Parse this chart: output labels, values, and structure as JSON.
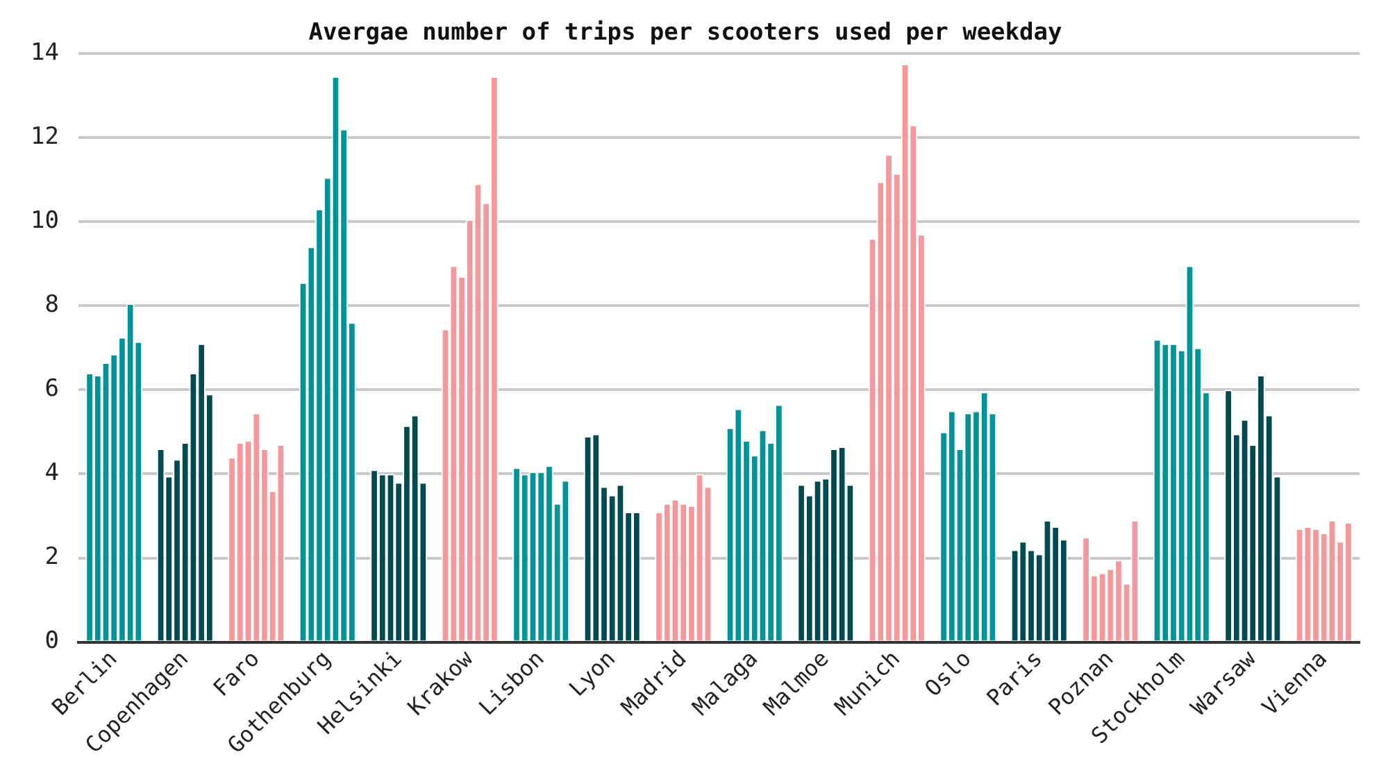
{
  "chart_data": {
    "type": "bar",
    "title": "Avergae number of trips per scooters used per weekday",
    "categories": [
      "Berlin",
      "Copenhagen",
      "Faro",
      "Gothenburg",
      "Helsinki",
      "Krakow",
      "Lisbon",
      "Lyon",
      "Madrid",
      "Malaga",
      "Malmoe",
      "Munich",
      "Oslo",
      "Paris",
      "Poznan",
      "Stockholm",
      "Warsaw",
      "Vienna"
    ],
    "ylim": [
      0,
      14
    ],
    "yticks": [
      0,
      2,
      4,
      6,
      8,
      10,
      12,
      14
    ],
    "grid": "y",
    "legend": false,
    "series": [
      {
        "colors": [
          "#00939a",
          "#004a52",
          "#f4989c",
          "#00939a",
          "#004a52",
          "#f4989c",
          "#00939a",
          "#004a52",
          "#f4989c",
          "#00939a",
          "#004a52",
          "#f4989c",
          "#00939a",
          "#004a52",
          "#f4989c",
          "#00939a",
          "#004a52",
          "#f4989c"
        ],
        "values": [
          6.4,
          4.6,
          4.4,
          8.55,
          4.1,
          7.45,
          4.15,
          4.9,
          3.1,
          5.1,
          3.75,
          9.6,
          5.0,
          2.2,
          2.5,
          7.2,
          6.0,
          2.7
        ]
      },
      {
        "colors": [
          "#00939a",
          "#004a52",
          "#f4989c",
          "#00939a",
          "#004a52",
          "#f4989c",
          "#00939a",
          "#004a52",
          "#f4989c",
          "#00939a",
          "#004a52",
          "#f4989c",
          "#00939a",
          "#004a52",
          "#f4989c",
          "#00939a",
          "#004a52",
          "#f4989c"
        ],
        "values": [
          6.35,
          3.95,
          4.75,
          9.4,
          4.0,
          8.95,
          4.0,
          4.95,
          3.3,
          5.55,
          3.5,
          10.95,
          5.5,
          2.4,
          1.6,
          7.1,
          4.95,
          2.75
        ]
      },
      {
        "colors": [
          "#00939a",
          "#004a52",
          "#f4989c",
          "#00939a",
          "#004a52",
          "#f4989c",
          "#00939a",
          "#004a52",
          "#f4989c",
          "#00939a",
          "#004a52",
          "#f4989c",
          "#00939a",
          "#004a52",
          "#f4989c",
          "#00939a",
          "#004a52",
          "#f4989c"
        ],
        "values": [
          6.65,
          4.35,
          4.8,
          10.3,
          4.0,
          8.7,
          4.05,
          3.7,
          3.4,
          4.8,
          3.85,
          11.6,
          4.6,
          2.2,
          1.65,
          7.1,
          5.3,
          2.7
        ]
      },
      {
        "colors": [
          "#00939a",
          "#004a52",
          "#f4989c",
          "#00939a",
          "#004a52",
          "#f4989c",
          "#00939a",
          "#004a52",
          "#f4989c",
          "#00939a",
          "#004a52",
          "#f4989c",
          "#00939a",
          "#004a52",
          "#f4989c",
          "#00939a",
          "#004a52",
          "#f4989c"
        ],
        "values": [
          6.85,
          4.75,
          5.45,
          11.05,
          3.8,
          10.05,
          4.05,
          3.5,
          3.3,
          4.45,
          3.9,
          11.15,
          5.45,
          2.1,
          1.75,
          6.95,
          4.7,
          2.6
        ]
      },
      {
        "colors": [
          "#00939a",
          "#004a52",
          "#f4989c",
          "#00939a",
          "#004a52",
          "#f4989c",
          "#00939a",
          "#004a52",
          "#f4989c",
          "#00939a",
          "#004a52",
          "#f4989c",
          "#00939a",
          "#004a52",
          "#f4989c",
          "#00939a",
          "#004a52",
          "#f4989c"
        ],
        "values": [
          7.25,
          6.4,
          4.6,
          13.45,
          5.15,
          10.9,
          4.2,
          3.75,
          3.25,
          5.05,
          4.6,
          13.75,
          5.5,
          2.9,
          1.95,
          8.95,
          6.35,
          2.9
        ]
      },
      {
        "colors": [
          "#00939a",
          "#004a52",
          "#f4989c",
          "#00939a",
          "#004a52",
          "#f4989c",
          "#00939a",
          "#004a52",
          "#f4989c",
          "#00939a",
          "#004a52",
          "#f4989c",
          "#00939a",
          "#004a52",
          "#f4989c",
          "#00939a",
          "#004a52",
          "#f4989c"
        ],
        "values": [
          8.05,
          7.1,
          3.6,
          12.2,
          5.4,
          10.45,
          3.3,
          3.1,
          4.0,
          4.75,
          4.65,
          12.3,
          5.95,
          2.75,
          1.4,
          7.0,
          5.4,
          2.4
        ]
      },
      {
        "colors": [
          "#00939a",
          "#004a52",
          "#f4989c",
          "#00939a",
          "#004a52",
          "#f4989c",
          "#00939a",
          "#004a52",
          "#f4989c",
          "#00939a",
          "#004a52",
          "#f4989c",
          "#00939a",
          "#004a52",
          "#f4989c",
          "#00939a",
          "#004a52",
          "#f4989c"
        ],
        "values": [
          7.15,
          5.9,
          4.7,
          7.6,
          3.8,
          13.45,
          3.85,
          3.1,
          3.7,
          5.65,
          3.75,
          9.7,
          5.45,
          2.45,
          2.9,
          5.95,
          3.95,
          2.85
        ]
      }
    ]
  }
}
